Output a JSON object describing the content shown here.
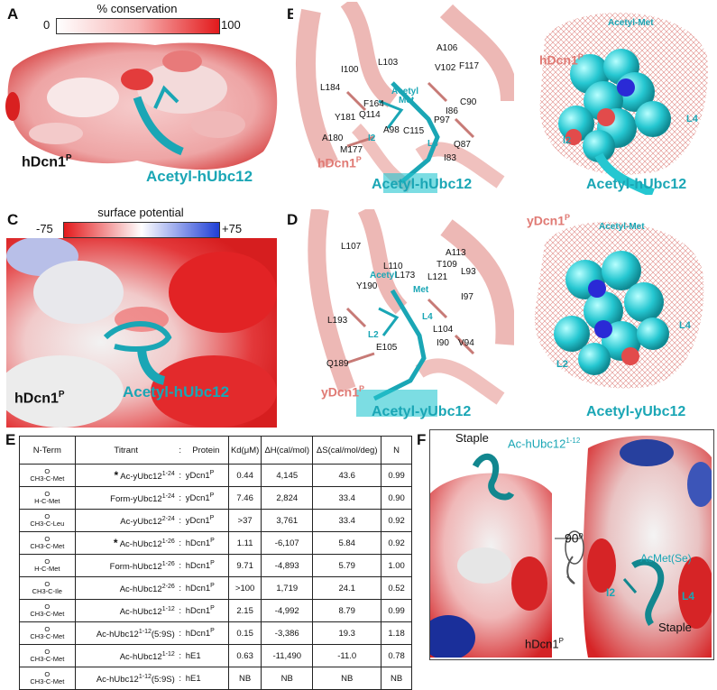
{
  "panels": {
    "A": {
      "label": "A",
      "bar_title": "% conservation",
      "bar_min": "0",
      "bar_max": "100",
      "protein": "hDcn1",
      "protein_sup": "P",
      "peptide": "Acetyl-hUbc12",
      "colors": {
        "low": "#ffffff",
        "high": "#e31a1c",
        "peptide": "#1aa6b5"
      }
    },
    "B": {
      "label": "B",
      "residues": [
        "A106",
        "L103",
        "I100",
        "V102",
        "F117",
        "L184",
        "F164",
        "C90",
        "Y181",
        "Q114",
        "I86",
        "P97",
        "A98",
        "C115",
        "A180",
        "M177",
        "Q87",
        "I83"
      ],
      "peptide_residues": [
        "Acetyl",
        "Met",
        "I2",
        "L4"
      ],
      "protein": "hDcn1",
      "protein_sup": "P",
      "peptide": "Acetyl-hUbc12",
      "density_label": "Acetyl-Met",
      "density_protein": "hDcn1",
      "density_protein_sup": "P",
      "density_labels": [
        "I2",
        "L4"
      ],
      "density_peptide": "Acetyl-hUbc12"
    },
    "C": {
      "label": "C",
      "bar_title": "surface potential",
      "bar_min": "-75",
      "bar_max": "+75",
      "protein": "hDcn1",
      "protein_sup": "P",
      "peptide": "Acetyl-hUbc12",
      "colors": {
        "negative": "#e31a1c",
        "neutral": "#ffffff",
        "positive": "#1f3fd6"
      }
    },
    "D": {
      "label": "D",
      "residues": [
        "L107",
        "A113",
        "L110",
        "T109",
        "L173",
        "L93",
        "L121",
        "Y190",
        "I97",
        "L193",
        "L104",
        "E105",
        "I90",
        "V94",
        "Q189"
      ],
      "peptide_residues": [
        "Acetyl",
        "Met",
        "L4",
        "L2"
      ],
      "protein": "yDcn1",
      "protein_sup": "P",
      "peptide": "Acetyl-yUbc12",
      "density_label": "Acetyl-Met",
      "density_protein": "yDcn1",
      "density_protein_sup": "P",
      "density_labels": [
        "L4",
        "L2"
      ],
      "density_peptide": "Acetyl-yUbc12"
    },
    "E": {
      "label": "E",
      "headers": [
        "N-Term",
        "Titrant",
        ":",
        "Protein",
        "Kd(μM)",
        "ΔH(cal/mol)",
        "ΔS(cal/mol/deg)",
        "N"
      ],
      "rows": [
        {
          "nterm_o": "O",
          "nterm": "CH3-C-Met",
          "star": "*",
          "titrant": "Ac-yUbc12",
          "tsup": "1-24",
          "sep": ":",
          "protein": "yDcn1",
          "psup": "P",
          "kd": "0.44",
          "dh": "4,145",
          "ds": "43.6",
          "n": "0.99"
        },
        {
          "nterm_o": "O",
          "nterm": "H-C-Met",
          "star": "",
          "titrant": "Form-yUbc12",
          "tsup": "1-24",
          "sep": ":",
          "protein": "yDcn1",
          "psup": "P",
          "kd": "7.46",
          "dh": "2,824",
          "ds": "33.4",
          "n": "0.90"
        },
        {
          "nterm_o": "O",
          "nterm": "CH3-C-Leu",
          "star": "",
          "titrant": "Ac-yUbc12",
          "tsup": "2-24",
          "sep": ":",
          "protein": "yDcn1",
          "psup": "P",
          "kd": ">37",
          "dh": "3,761",
          "ds": "33.4",
          "n": "0.92"
        },
        {
          "nterm_o": "O",
          "nterm": "CH3-C-Met",
          "star": "*",
          "titrant": "Ac-hUbc12",
          "tsup": "1-26",
          "sep": ":",
          "protein": "hDcn1",
          "psup": "P",
          "kd": "1.11",
          "dh": "-6,107",
          "ds": "5.84",
          "n": "0.92"
        },
        {
          "nterm_o": "O",
          "nterm": "H-C-Met",
          "star": "",
          "titrant": "Form-hUbc12",
          "tsup": "1-26",
          "sep": ":",
          "protein": "hDcn1",
          "psup": "P",
          "kd": "9.71",
          "dh": "-4,893",
          "ds": "5.79",
          "n": "1.00"
        },
        {
          "nterm_o": "O",
          "nterm": "CH3-C-Ile",
          "star": "",
          "titrant": "Ac-hUbc12",
          "tsup": "2-26",
          "sep": ":",
          "protein": "hDcn1",
          "psup": "P",
          "kd": ">100",
          "dh": "1,719",
          "ds": "24.1",
          "n": "0.52"
        },
        {
          "nterm_o": "O",
          "nterm": "CH3-C-Met",
          "star": "",
          "titrant": "Ac-hUbc12",
          "tsup": "1-12",
          "sep": ":",
          "protein": "hDcn1",
          "psup": "P",
          "kd": "2.15",
          "dh": "-4,992",
          "ds": "8.79",
          "n": "0.99"
        },
        {
          "nterm_o": "O",
          "nterm": "CH3-C-Met",
          "star": "",
          "titrant": "Ac-hUbc12",
          "tsup": "1-12",
          "tsuffix": "(5:9S)",
          "sep": ":",
          "protein": "hDcn1",
          "psup": "P",
          "kd": "0.15",
          "dh": "-3,386",
          "ds": "19.3",
          "n": "1.18"
        },
        {
          "nterm_o": "O",
          "nterm": "CH3-C-Met",
          "star": "",
          "titrant": "Ac-hUbc12",
          "tsup": "1-12",
          "sep": ":",
          "protein": "hE1",
          "psup": "",
          "kd": "0.63",
          "dh": "-11,490",
          "ds": "-11.0",
          "n": "0.78"
        },
        {
          "nterm_o": "O",
          "nterm": "CH3-C-Met",
          "star": "",
          "titrant": "Ac-hUbc12",
          "tsup": "1-12",
          "tsuffix": "(5:9S)",
          "sep": ":",
          "protein": "hE1",
          "psup": "",
          "kd": "NB",
          "dh": "NB",
          "ds": "NB",
          "n": "NB"
        }
      ]
    },
    "F": {
      "label": "F",
      "staple_top": "Staple",
      "peptide": "Ac-hUbc12",
      "peptide_sup": "1-12",
      "rotation": "90",
      "rotation_unit": "o",
      "selenium": "AcMet(Se)",
      "labels": [
        "I2",
        "L4"
      ],
      "staple_bottom": "Staple",
      "protein": "hDcn1",
      "protein_sup": "P"
    }
  }
}
